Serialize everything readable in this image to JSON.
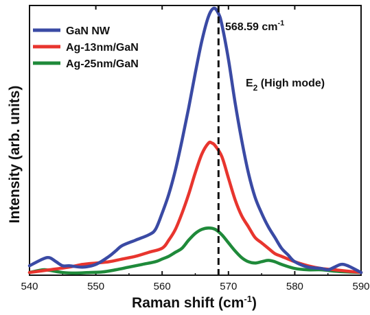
{
  "chart_data": {
    "type": "line",
    "xlabel": "Raman shift (cm",
    "xlabel_sup": "-1",
    "xlabel_suffix": ")",
    "ylabel": "Intensity (arb. units)",
    "xlim": [
      540,
      590
    ],
    "ylim": [
      0,
      1.0
    ],
    "xticks": [
      540,
      550,
      560,
      570,
      580,
      590
    ],
    "grid": false,
    "legend_position": "top-left",
    "series": [
      {
        "name": "GaN NW",
        "color": "#3a4aa4",
        "x": [
          540,
          542,
          543,
          544,
          545,
          546,
          548,
          550,
          552,
          553,
          554,
          556,
          558,
          559,
          560,
          561,
          562,
          563,
          564,
          565,
          566,
          567,
          567.8,
          568.5,
          569,
          570,
          571,
          572,
          573,
          574,
          575,
          576,
          577,
          578,
          579,
          580,
          582,
          584,
          585,
          586,
          587,
          588,
          590
        ],
        "y": [
          0.035,
          0.06,
          0.065,
          0.05,
          0.035,
          0.035,
          0.03,
          0.04,
          0.07,
          0.09,
          0.11,
          0.13,
          0.15,
          0.17,
          0.23,
          0.3,
          0.39,
          0.5,
          0.62,
          0.75,
          0.87,
          0.96,
          0.99,
          0.97,
          0.93,
          0.8,
          0.64,
          0.5,
          0.38,
          0.29,
          0.23,
          0.18,
          0.14,
          0.1,
          0.075,
          0.05,
          0.03,
          0.025,
          0.02,
          0.03,
          0.04,
          0.035,
          0.01
        ]
      },
      {
        "name": "Ag-13nm/GaN",
        "color": "#e8352e",
        "x": [
          540,
          543,
          546,
          548,
          550,
          552,
          554,
          556,
          558,
          560,
          561,
          562,
          563,
          564,
          565,
          566,
          567,
          567.5,
          568,
          569,
          570,
          571,
          572,
          573,
          574,
          575,
          576,
          577,
          578,
          580,
          582,
          584,
          586,
          588,
          590
        ],
        "y": [
          0.01,
          0.02,
          0.03,
          0.04,
          0.045,
          0.05,
          0.06,
          0.07,
          0.085,
          0.1,
          0.13,
          0.17,
          0.23,
          0.3,
          0.38,
          0.45,
          0.49,
          0.49,
          0.48,
          0.44,
          0.36,
          0.28,
          0.22,
          0.18,
          0.14,
          0.12,
          0.1,
          0.08,
          0.07,
          0.05,
          0.035,
          0.025,
          0.02,
          0.015,
          0.01
        ]
      },
      {
        "name": "Ag-25nm/GaN",
        "color": "#1f8a3a",
        "x": [
          540,
          542,
          543,
          545,
          547,
          549,
          551,
          553,
          555,
          557,
          559,
          560,
          561,
          562,
          563,
          564,
          565,
          566,
          567,
          568,
          569,
          570,
          571,
          572,
          573,
          574,
          575,
          576,
          577,
          578,
          580,
          582,
          584,
          586,
          588,
          590
        ],
        "y": [
          0.01,
          0.02,
          0.018,
          0.01,
          0.008,
          0.01,
          0.012,
          0.02,
          0.03,
          0.04,
          0.05,
          0.06,
          0.07,
          0.085,
          0.1,
          0.13,
          0.155,
          0.17,
          0.175,
          0.17,
          0.15,
          0.12,
          0.09,
          0.065,
          0.05,
          0.045,
          0.05,
          0.055,
          0.05,
          0.04,
          0.025,
          0.02,
          0.02,
          0.015,
          0.012,
          0.01
        ]
      }
    ],
    "annotations": {
      "peak_line_x": 568.5,
      "peak_label": "568.59 cm",
      "peak_label_sup": "-1",
      "mode_label_main": "E",
      "mode_label_sub": "2",
      "mode_label_rest": " (High mode)"
    }
  }
}
